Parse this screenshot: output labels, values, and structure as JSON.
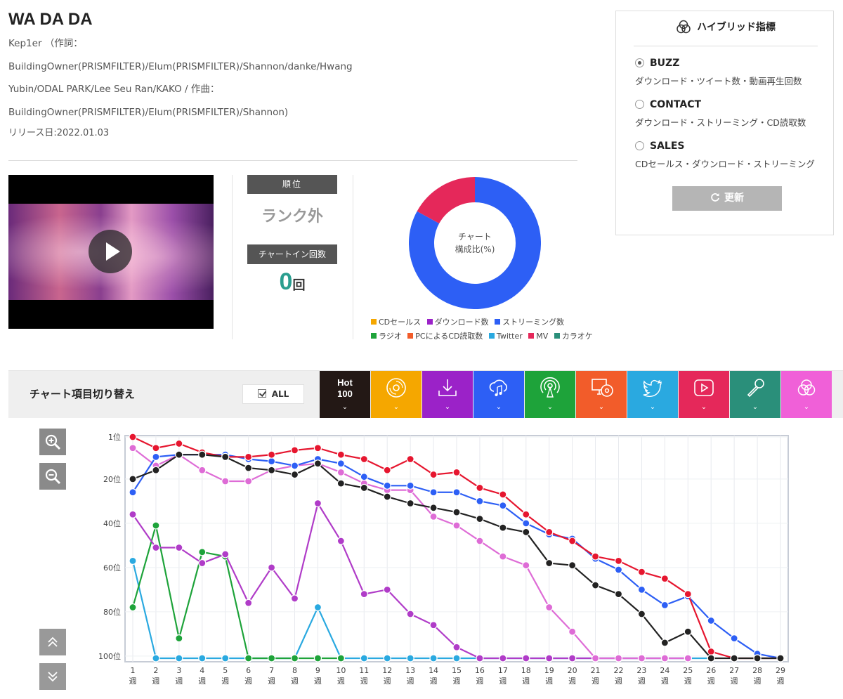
{
  "song": {
    "title": "WA DA DA",
    "credit_lines": [
      "Kep1er （作詞：",
      "BuildingOwner(PRISMFILTER)/Elum(PRISMFILTER)/Shannon/danke/Hwang",
      "Yubin/ODAL PARK/Lee Seu Ran/KAKO / 作曲：",
      "BuildingOwner(PRISMFILTER)/Elum(PRISMFILTER)/Shannon)"
    ],
    "release": "リリース日:2022.01.03"
  },
  "video": {
    "play_icon": "play-icon"
  },
  "rank": {
    "header": "順位",
    "value": "ランク外",
    "chartin_header": "チャートイン回数",
    "chartin_count": "0",
    "chartin_unit": "回"
  },
  "composition": {
    "center_label_1": "チャート",
    "center_label_2": "構成比(%)",
    "slices": [
      {
        "name": "ストリーミング数",
        "value": 83,
        "color": "#2d5ff5"
      },
      {
        "name": "MV",
        "value": 17,
        "color": "#e5285a"
      }
    ],
    "legend": [
      {
        "name": "CDセールス",
        "color": "#f5a700"
      },
      {
        "name": "ダウンロード数",
        "color": "#9b22c8"
      },
      {
        "name": "ストリーミング数",
        "color": "#2d5ff5"
      },
      {
        "name": "ラジオ",
        "color": "#1ea33a"
      },
      {
        "name": "PCによるCD読取数",
        "color": "#f25c2a"
      },
      {
        "name": "Twitter",
        "color": "#2aa9e0"
      },
      {
        "name": "MV",
        "color": "#e5285a"
      },
      {
        "name": "カラオケ",
        "color": "#2a8f7a"
      }
    ]
  },
  "hybrid": {
    "title": "ハイブリッド指標",
    "options": [
      {
        "label": "BUZZ",
        "desc": "ダウンロード・ツイート数・動画再生回数",
        "checked": true
      },
      {
        "label": "CONTACT",
        "desc": "ダウンロード・ストリーミング・CD読取数",
        "checked": false
      },
      {
        "label": "SALES",
        "desc": "CDセールス・ダウンロード・ストリーミング",
        "checked": false
      }
    ],
    "update_button": "更新"
  },
  "toolbar": {
    "title": "チャート項目切り替え",
    "all_label": "ALL",
    "hot_label_1": "Hot",
    "hot_label_2": "100",
    "tabs": [
      {
        "icon": "hot100-icon",
        "color": "#231815"
      },
      {
        "icon": "cd-icon",
        "color": "#f5a700"
      },
      {
        "icon": "download-icon",
        "color": "#9b22c8"
      },
      {
        "icon": "streaming-icon",
        "color": "#2d5ff5"
      },
      {
        "icon": "radio-icon",
        "color": "#1ea33a"
      },
      {
        "icon": "pc-cd-icon",
        "color": "#f25c2a"
      },
      {
        "icon": "twitter-icon",
        "color": "#2aa9e0"
      },
      {
        "icon": "mv-icon",
        "color": "#e5285a"
      },
      {
        "icon": "karaoke-icon",
        "color": "#2a8f7a"
      },
      {
        "icon": "hybrid-icon",
        "color": "#f060d8"
      }
    ]
  },
  "chart_data": {
    "type": "line",
    "y_inverted": true,
    "ylim": [
      1,
      101
    ],
    "y_ticks": [
      {
        "value": 1,
        "label": "1位"
      },
      {
        "value": 20,
        "label": "20位"
      },
      {
        "value": 40,
        "label": "40位"
      },
      {
        "value": 60,
        "label": "60位"
      },
      {
        "value": 80,
        "label": "80位"
      },
      {
        "value": 100,
        "label": "100位"
      }
    ],
    "x": [
      1,
      2,
      3,
      4,
      5,
      6,
      7,
      8,
      9,
      10,
      11,
      12,
      13,
      14,
      15,
      16,
      17,
      18,
      19,
      20,
      21,
      22,
      23,
      24,
      25,
      26,
      27,
      28,
      29
    ],
    "x_unit": "週",
    "series": [
      {
        "color": "#2aa9e0",
        "values": [
          57,
          101,
          101,
          101,
          101,
          101,
          101,
          101,
          78,
          101,
          101,
          101,
          101,
          101,
          101,
          101,
          101,
          101,
          101,
          101,
          101,
          101,
          101,
          101,
          101,
          101,
          null,
          null,
          null
        ]
      },
      {
        "color": "#1ea33a",
        "values": [
          78,
          41,
          92,
          53,
          55,
          101,
          101,
          101,
          101,
          101,
          null,
          null,
          null,
          null,
          null,
          null,
          null,
          null,
          null,
          null,
          null,
          null,
          null,
          null,
          null,
          null,
          null,
          null,
          null
        ]
      },
      {
        "color": "#b03cc8",
        "values": [
          36,
          51,
          51,
          58,
          54,
          76,
          60,
          74,
          31,
          48,
          72,
          70,
          81,
          86,
          96,
          101,
          101,
          101,
          101,
          101,
          101,
          101,
          101,
          101,
          101,
          null,
          null,
          null,
          null
        ]
      },
      {
        "color": "#de6cd6",
        "values": [
          6,
          14,
          9,
          16,
          21,
          21,
          16,
          14,
          13,
          17,
          22,
          25,
          25,
          37,
          41,
          48,
          55,
          59,
          78,
          89,
          101,
          101,
          101,
          101,
          101,
          null,
          null,
          null,
          null
        ]
      },
      {
        "color": "#2d5ff5",
        "values": [
          26,
          10,
          9,
          9,
          9,
          11,
          12,
          14,
          11,
          13,
          19,
          23,
          23,
          26,
          26,
          30,
          32,
          40,
          45,
          47,
          56,
          61,
          70,
          77,
          73,
          84,
          92,
          99,
          101
        ]
      },
      {
        "color": "#e6162f",
        "values": [
          1,
          6,
          4,
          8,
          10,
          10,
          9,
          7,
          6,
          9,
          11,
          16,
          11,
          18,
          17,
          24,
          27,
          36,
          44,
          48,
          55,
          57,
          62,
          65,
          72,
          98,
          101,
          101,
          101
        ]
      },
      {
        "color": "#222222",
        "values": [
          20,
          16,
          9,
          9,
          10,
          15,
          16,
          18,
          13,
          22,
          24,
          28,
          31,
          33,
          35,
          38,
          42,
          44,
          58,
          59,
          68,
          72,
          81,
          94,
          89,
          101,
          101,
          101,
          101
        ]
      }
    ]
  }
}
